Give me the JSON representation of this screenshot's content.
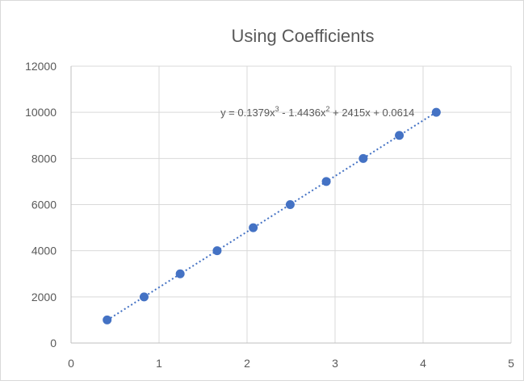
{
  "chart_data": {
    "type": "scatter",
    "title": "Using Coefficients",
    "xlabel": "",
    "ylabel": "",
    "xlim": [
      0,
      5
    ],
    "ylim": [
      0,
      12000
    ],
    "x_ticks": [
      0,
      1,
      2,
      3,
      4,
      5
    ],
    "y_ticks": [
      0,
      2000,
      4000,
      6000,
      8000,
      10000,
      12000
    ],
    "grid": true,
    "legend": "none",
    "series": [
      {
        "x": [
          0.41,
          0.83,
          1.24,
          1.66,
          2.07,
          2.49,
          2.9,
          3.32,
          3.73,
          4.15
        ],
        "y": [
          1000,
          2000,
          3000,
          4000,
          5000,
          6000,
          7000,
          8000,
          9000,
          10000
        ],
        "color": "#4472c4"
      }
    ],
    "trendline": {
      "kind": "polynomial",
      "coefficients": [
        0.1379,
        -1.4436,
        2415,
        0.0614
      ],
      "style": "dotted",
      "color": "#4472c4",
      "x_range": [
        0.41,
        4.15
      ]
    },
    "annotations": [
      {
        "text_parts": [
          "y = 0.1379x",
          "3",
          " - 1.4436x",
          "2",
          " + 2415x + 0.0614"
        ],
        "anchor_x": 2.8,
        "anchor_y": 10000
      }
    ],
    "colors": {
      "marker": "#4472c4",
      "gridline": "#d9d9d9",
      "axis": "#bfbfbf",
      "text": "#595959",
      "frame": "#d9d9d9"
    }
  }
}
